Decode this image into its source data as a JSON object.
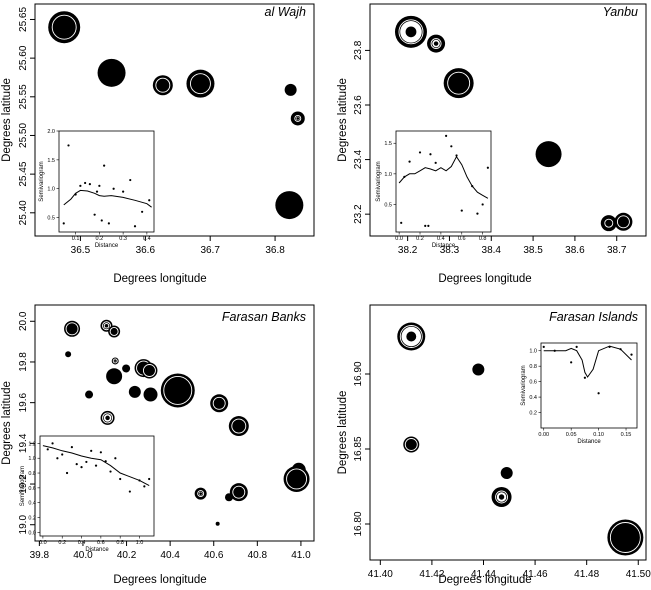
{
  "chart_data": [
    {
      "type": "scatter",
      "title": "al Wajh",
      "xlabel": "Degrees longitude",
      "ylabel": "Degrees latitude",
      "xlim": [
        36.43,
        36.86
      ],
      "ylim": [
        25.37,
        25.67
      ],
      "xticks": [
        "36.5",
        "36.6",
        "36.7",
        "36.8"
      ],
      "xtick_values": [
        36.5,
        36.6,
        36.7,
        36.8
      ],
      "yticks": [
        "25.40",
        "25.45",
        "25.50",
        "25.55",
        "25.60",
        "25.65"
      ],
      "ytick_values": [
        25.4,
        25.45,
        25.5,
        25.55,
        25.6,
        25.65
      ],
      "points": [
        {
          "x": 36.475,
          "y": 25.64,
          "style": "filled-ring"
        },
        {
          "x": 36.548,
          "y": 25.581,
          "style": "filled"
        },
        {
          "x": 36.627,
          "y": 25.565,
          "style": "ring-dark"
        },
        {
          "x": 36.685,
          "y": 25.567,
          "style": "ring-dark"
        },
        {
          "x": 36.824,
          "y": 25.559,
          "style": "filled"
        },
        {
          "x": 36.835,
          "y": 25.522,
          "style": "ring-light"
        },
        {
          "x": 36.822,
          "y": 25.41,
          "style": "filled"
        }
      ],
      "inset": {
        "type": "line",
        "xlabel": "Distance",
        "ylabel": "Semivariogram",
        "xlim": [
          0.03,
          0.43
        ],
        "ylim": [
          0.25,
          2.0
        ],
        "xticks": [
          "0.1",
          "0.2",
          "0.3",
          "0.4"
        ],
        "xtick_values": [
          0.1,
          0.2,
          0.3,
          0.4
        ],
        "yticks": [
          "0.5",
          "1.0",
          "1.5",
          "2.0"
        ],
        "ytick_values": [
          0.5,
          1.0,
          1.5,
          2.0
        ],
        "x": [
          0.05,
          0.08,
          0.1,
          0.12,
          0.15,
          0.18,
          0.2,
          0.22,
          0.25,
          0.3,
          0.35,
          0.4,
          0.42
        ],
        "y": [
          0.72,
          0.82,
          0.92,
          0.97,
          0.96,
          0.92,
          0.88,
          0.87,
          0.88,
          0.85,
          0.8,
          0.74,
          0.68
        ],
        "points_x": [
          0.05,
          0.07,
          0.1,
          0.12,
          0.14,
          0.16,
          0.18,
          0.19,
          0.2,
          0.21,
          0.22,
          0.24,
          0.26,
          0.3,
          0.33,
          0.35,
          0.38,
          0.41
        ],
        "points_y": [
          0.4,
          1.75,
          0.9,
          1.05,
          1.1,
          1.08,
          0.55,
          0.95,
          1.05,
          0.45,
          1.4,
          0.4,
          1.0,
          0.95,
          1.15,
          0.35,
          0.6,
          0.8
        ]
      }
    },
    {
      "type": "scatter",
      "title": "Yanbu",
      "xlabel": "Degrees longitude",
      "ylabel": "Degrees latitude",
      "xlim": [
        38.11,
        38.77
      ],
      "ylim": [
        23.12,
        23.97
      ],
      "xticks": [
        "38.2",
        "38.3",
        "38.4",
        "38.5",
        "38.6",
        "38.7"
      ],
      "xtick_values": [
        38.2,
        38.3,
        38.4,
        38.5,
        38.6,
        38.7
      ],
      "yticks": [
        "23.2",
        "23.4",
        "23.6",
        "23.8"
      ],
      "ytick_values": [
        23.2,
        23.4,
        23.6,
        23.8
      ],
      "points": [
        {
          "x": 38.208,
          "y": 23.868,
          "style": "ring-light"
        },
        {
          "x": 38.268,
          "y": 23.825,
          "style": "ring-light"
        },
        {
          "x": 38.322,
          "y": 23.68,
          "style": "ring-dark"
        },
        {
          "x": 38.537,
          "y": 23.42,
          "style": "filled"
        },
        {
          "x": 38.681,
          "y": 23.167,
          "style": "ring-dark"
        },
        {
          "x": 38.716,
          "y": 23.172,
          "style": "ring-dark"
        }
      ],
      "inset": {
        "type": "line",
        "xlabel": "Distance",
        "ylabel": "Semivariogram",
        "xlim": [
          -0.03,
          0.88
        ],
        "ylim": [
          0.05,
          1.7
        ],
        "xticks": [
          "0.0",
          "0.2",
          "0.4",
          "0.6",
          "0.8"
        ],
        "xtick_values": [
          0.0,
          0.2,
          0.4,
          0.6,
          0.8
        ],
        "yticks": [
          "0.5",
          "1.0",
          "1.5"
        ],
        "ytick_values": [
          0.5,
          1.0,
          1.5
        ],
        "x": [
          0.0,
          0.05,
          0.1,
          0.15,
          0.2,
          0.25,
          0.3,
          0.35,
          0.4,
          0.45,
          0.5,
          0.55,
          0.6,
          0.65,
          0.7,
          0.75,
          0.8,
          0.85
        ],
        "y": [
          0.85,
          0.95,
          1.0,
          1.0,
          1.05,
          1.1,
          1.08,
          1.05,
          1.1,
          1.05,
          1.12,
          1.28,
          1.15,
          0.95,
          0.8,
          0.7,
          0.65,
          0.6
        ],
        "points_x": [
          0.02,
          0.05,
          0.1,
          0.2,
          0.25,
          0.28,
          0.3,
          0.35,
          0.45,
          0.5,
          0.55,
          0.6,
          0.7,
          0.75,
          0.8,
          0.85
        ],
        "points_y": [
          0.2,
          0.95,
          1.2,
          1.35,
          0.15,
          0.15,
          1.32,
          1.18,
          1.62,
          1.45,
          1.3,
          0.4,
          0.8,
          0.35,
          0.5,
          1.1
        ]
      }
    },
    {
      "type": "scatter",
      "title": "Farasan Banks",
      "xlabel": "Degrees longitude",
      "ylabel": "Degrees latitude",
      "xlim": [
        39.78,
        41.06
      ],
      "ylim": [
        18.92,
        20.08
      ],
      "xticks": [
        "39.8",
        "40.0",
        "40.2",
        "40.4",
        "40.6",
        "40.8",
        "41.0"
      ],
      "xtick_values": [
        39.8,
        40.0,
        40.2,
        40.4,
        40.6,
        40.8,
        41.0
      ],
      "yticks": [
        "19.0",
        "19.2",
        "19.4",
        "19.6",
        "19.8",
        "20.0"
      ],
      "ytick_values": [
        19.0,
        19.2,
        19.4,
        19.6,
        19.8,
        20.0
      ],
      "points": [
        {
          "x": 39.95,
          "y": 19.963,
          "style": "ring-dark"
        },
        {
          "x": 39.932,
          "y": 19.838,
          "style": "filled"
        },
        {
          "x": 40.108,
          "y": 19.978,
          "style": "ring-light"
        },
        {
          "x": 40.143,
          "y": 19.95,
          "style": "ring-dark"
        },
        {
          "x": 40.148,
          "y": 19.805,
          "style": "ring-light"
        },
        {
          "x": 40.143,
          "y": 19.73,
          "style": "filled"
        },
        {
          "x": 40.198,
          "y": 19.768,
          "style": "filled"
        },
        {
          "x": 40.278,
          "y": 19.77,
          "style": "ring-dark"
        },
        {
          "x": 40.305,
          "y": 19.758,
          "style": "ring-dark"
        },
        {
          "x": 40.028,
          "y": 19.64,
          "style": "filled"
        },
        {
          "x": 40.238,
          "y": 19.653,
          "style": "filled"
        },
        {
          "x": 40.31,
          "y": 19.64,
          "style": "filled"
        },
        {
          "x": 40.435,
          "y": 19.66,
          "style": "ring-dark"
        },
        {
          "x": 40.113,
          "y": 19.525,
          "style": "ring-light"
        },
        {
          "x": 40.625,
          "y": 19.597,
          "style": "ring-dark"
        },
        {
          "x": 40.715,
          "y": 19.485,
          "style": "ring-dark"
        },
        {
          "x": 40.99,
          "y": 19.27,
          "style": "filled"
        },
        {
          "x": 40.98,
          "y": 19.225,
          "style": "ring-dark"
        },
        {
          "x": 40.715,
          "y": 19.16,
          "style": "ring-dark"
        },
        {
          "x": 40.67,
          "y": 19.135,
          "style": "filled"
        },
        {
          "x": 40.54,
          "y": 19.153,
          "style": "ring-light"
        },
        {
          "x": 40.618,
          "y": 19.005,
          "style": "filled"
        }
      ],
      "inset": {
        "type": "line",
        "xlabel": "Distance",
        "ylabel": "Semivariogram",
        "xlim": [
          -0.03,
          1.15
        ],
        "ylim": [
          -0.05,
          1.3
        ],
        "xticks": [
          "0.0",
          "0.2",
          "0.4",
          "0.6",
          "0.8",
          "1.0"
        ],
        "xtick_values": [
          0.0,
          0.2,
          0.4,
          0.6,
          0.8,
          1.0
        ],
        "yticks": [
          "0.0",
          "0.2",
          "0.4",
          "0.6",
          "0.8",
          "1.0",
          "1.2"
        ],
        "ytick_values": [
          0.0,
          0.2,
          0.4,
          0.6,
          0.8,
          1.0,
          1.2
        ],
        "x": [
          0.0,
          0.1,
          0.2,
          0.3,
          0.4,
          0.5,
          0.6,
          0.7,
          0.8,
          0.9,
          1.0,
          1.1
        ],
        "y": [
          1.17,
          1.14,
          1.1,
          1.07,
          1.03,
          1.0,
          0.98,
          0.9,
          0.8,
          0.75,
          0.7,
          0.63
        ],
        "points_x": [
          0.05,
          0.1,
          0.15,
          0.2,
          0.25,
          0.3,
          0.35,
          0.4,
          0.45,
          0.5,
          0.55,
          0.6,
          0.65,
          0.7,
          0.75,
          0.8,
          0.9,
          1.0,
          1.05,
          1.1
        ],
        "points_y": [
          1.12,
          1.2,
          1.0,
          1.05,
          0.8,
          1.15,
          0.92,
          0.88,
          0.95,
          1.1,
          0.9,
          1.08,
          0.96,
          0.82,
          1.0,
          0.72,
          0.55,
          0.7,
          0.62,
          0.72
        ]
      }
    },
    {
      "type": "scatter",
      "title": "Farasan Islands",
      "xlabel": "Degrees longitude",
      "ylabel": "Degrees latitude",
      "xlim": [
        41.396,
        41.503
      ],
      "ylim": [
        16.776,
        16.946
      ],
      "xticks": [
        "41.40",
        "41.42",
        "41.44",
        "41.46",
        "41.48",
        "41.50"
      ],
      "xtick_values": [
        41.4,
        41.42,
        41.44,
        41.46,
        41.48,
        41.5
      ],
      "yticks": [
        "16.80",
        "16.85",
        "16.90"
      ],
      "ytick_values": [
        16.8,
        16.85,
        16.9
      ],
      "points": [
        {
          "x": 41.412,
          "y": 16.925,
          "style": "ring-light"
        },
        {
          "x": 41.412,
          "y": 16.853,
          "style": "ring-dark"
        },
        {
          "x": 41.438,
          "y": 16.903,
          "style": "filled"
        },
        {
          "x": 41.449,
          "y": 16.834,
          "style": "filled"
        },
        {
          "x": 41.447,
          "y": 16.818,
          "style": "ring-light"
        },
        {
          "x": 41.495,
          "y": 16.791,
          "style": "ring-dark"
        }
      ],
      "inset": {
        "type": "line",
        "xlabel": "Distance",
        "ylabel": "Semivariogram",
        "xlim": [
          -0.005,
          0.17
        ],
        "ylim": [
          0.0,
          1.1
        ],
        "xticks": [
          "0.00",
          "0.05",
          "0.10",
          "0.15"
        ],
        "xtick_values": [
          0.0,
          0.05,
          0.1,
          0.15
        ],
        "yticks": [
          "0.2",
          "0.4",
          "0.6",
          "0.8",
          "1.0"
        ],
        "ytick_values": [
          0.2,
          0.4,
          0.6,
          0.8,
          1.0
        ],
        "x": [
          0.0,
          0.02,
          0.04,
          0.05,
          0.06,
          0.07,
          0.075,
          0.08,
          0.09,
          0.1,
          0.12,
          0.14,
          0.16
        ],
        "y": [
          1.0,
          1.0,
          1.0,
          1.03,
          1.0,
          0.88,
          0.72,
          0.66,
          0.76,
          1.0,
          1.06,
          1.02,
          0.88
        ],
        "points_x": [
          0.0,
          0.02,
          0.05,
          0.06,
          0.075,
          0.1,
          0.12,
          0.14,
          0.16
        ],
        "points_y": [
          1.05,
          1.0,
          0.85,
          1.05,
          0.65,
          0.45,
          1.05,
          1.02,
          0.95
        ]
      }
    }
  ]
}
